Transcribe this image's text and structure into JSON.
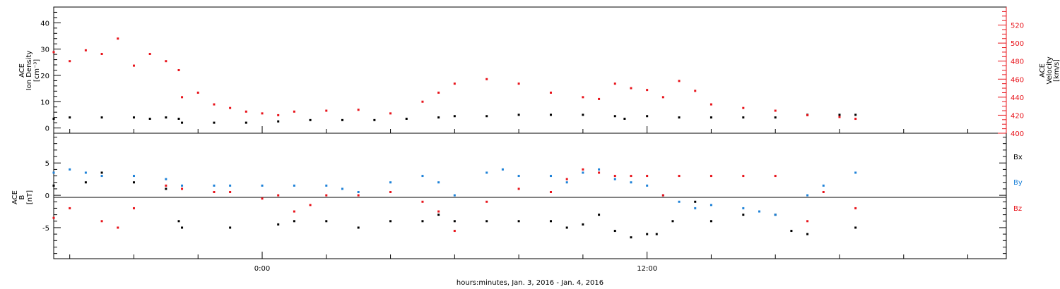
{
  "colors": {
    "black": "#000000",
    "red": "#e8141b",
    "blue": "#1e82d8"
  },
  "xlabel": "hours:minutes, Jan.  3, 2016 - Jan.  4, 2016",
  "chart_data": [
    {
      "type": "scatter",
      "panel": "ion-density-velocity",
      "ylabel_left": [
        "ACE",
        "Ion Density",
        "[cm⁻³]"
      ],
      "ylabel_right": [
        "ACE",
        "Velocity",
        "[km/s]"
      ],
      "ylim_left": [
        -2,
        46
      ],
      "yticks_left": [
        "0",
        "10",
        "20",
        "30",
        "40"
      ],
      "ylim_right": [
        400,
        540
      ],
      "yticks_right": [
        "400",
        "420",
        "440",
        "460",
        "480",
        "500",
        "520"
      ],
      "x_ticks": [
        {
          "hour": 0,
          "label": "0:00"
        },
        {
          "hour": 12,
          "label": "12:00"
        }
      ],
      "xlim_hours": [
        -6.5,
        23.2
      ],
      "series": [
        {
          "name": "Ion Density",
          "color": "#000000",
          "axis": "left",
          "x": [
            -6.5,
            -6.0,
            -5.0,
            -4.0,
            -3.5,
            -3.0,
            -2.6,
            -2.5,
            -1.5,
            -0.5,
            0.5,
            1.5,
            2.5,
            3.5,
            4.5,
            5.5,
            6.0,
            7.0,
            8.0,
            9.0,
            10.0,
            11.0,
            11.3,
            12.0,
            13.0,
            14.0,
            15.0,
            16.0,
            17.0,
            18.0,
            18.5
          ],
          "y": [
            3.5,
            4.0,
            4.0,
            4.0,
            3.5,
            4.0,
            3.5,
            2.0,
            2.0,
            2.0,
            2.5,
            3.0,
            3.0,
            3.0,
            3.5,
            4.0,
            4.5,
            4.5,
            5.0,
            5.0,
            5.0,
            4.5,
            3.5,
            4.5,
            4.0,
            4.0,
            4.0,
            4.0,
            5.0,
            5.0,
            5.0
          ]
        },
        {
          "name": "Velocity",
          "color": "#e8141b",
          "axis": "right",
          "x": [
            -6.5,
            -6.0,
            -5.5,
            -5.0,
            -4.5,
            -4.0,
            -3.5,
            -3.0,
            -2.6,
            -2.5,
            -2.0,
            -1.5,
            -1.0,
            -0.5,
            0.0,
            0.5,
            1.0,
            2.0,
            3.0,
            4.0,
            5.0,
            5.5,
            6.0,
            7.0,
            8.0,
            9.0,
            10.0,
            10.5,
            11.0,
            11.5,
            12.0,
            12.5,
            13.0,
            13.5,
            14.0,
            15.0,
            16.0,
            17.0,
            18.0,
            18.5
          ],
          "y": [
            490,
            480,
            492,
            488,
            505,
            475,
            488,
            480,
            470,
            440,
            445,
            432,
            428,
            424,
            422,
            420,
            424,
            425,
            426,
            422,
            435,
            445,
            455,
            460,
            455,
            445,
            440,
            438,
            455,
            450,
            448,
            440,
            458,
            447,
            432,
            428,
            425,
            420,
            418,
            416
          ]
        }
      ]
    },
    {
      "type": "scatter",
      "panel": "magnetic-field",
      "ylabel": [
        "ACE",
        "B",
        "[nT]"
      ],
      "ylim": [
        -9.8,
        9.6
      ],
      "yticks": [
        "-5",
        "0",
        "5"
      ],
      "zero_line": true,
      "legend": [
        "Bx",
        "By",
        "Bz"
      ],
      "legend_placement": "right",
      "series": [
        {
          "name": "Bx",
          "color": "#000000",
          "x": [
            -6.5,
            -5.5,
            -5.0,
            -4.0,
            -3.0,
            -2.6,
            -2.5,
            -1.0,
            0.5,
            1.0,
            2.0,
            3.0,
            4.0,
            5.0,
            5.5,
            6.0,
            7.0,
            8.0,
            9.0,
            9.5,
            10.0,
            10.5,
            11.0,
            11.5,
            12.0,
            12.3,
            12.8,
            13.5,
            14.0,
            15.0,
            16.0,
            16.5,
            17.0,
            18.5
          ],
          "y": [
            1.5,
            2.0,
            3.5,
            2.0,
            1.0,
            -4.0,
            -5.0,
            -5.0,
            -4.5,
            -4.0,
            -4.0,
            -5.0,
            -4.0,
            -4.0,
            -3.0,
            -4.0,
            -4.0,
            -4.0,
            -4.0,
            -5.0,
            -4.5,
            -3.0,
            -5.5,
            -6.5,
            -6.0,
            -6.0,
            -4.0,
            -1.0,
            -4.0,
            -3.0,
            -3.0,
            -5.5,
            -6.0,
            -5.0
          ]
        },
        {
          "name": "By",
          "color": "#1e82d8",
          "x": [
            -6.5,
            -6.0,
            -5.5,
            -5.0,
            -4.0,
            -3.0,
            -2.5,
            -1.5,
            -1.0,
            0.0,
            1.0,
            2.0,
            2.5,
            3.0,
            4.0,
            5.0,
            5.5,
            6.0,
            7.0,
            7.5,
            8.0,
            9.0,
            9.5,
            10.0,
            10.5,
            11.0,
            11.5,
            12.0,
            12.5,
            13.0,
            13.5,
            14.0,
            15.0,
            15.5,
            16.0,
            17.0,
            17.5,
            18.5
          ],
          "y": [
            3.5,
            4.0,
            3.5,
            3.0,
            3.0,
            2.5,
            1.5,
            1.5,
            1.5,
            1.5,
            1.5,
            1.5,
            1.0,
            0.5,
            2.0,
            3.0,
            2.0,
            0.0,
            3.5,
            4.0,
            3.0,
            3.0,
            2.0,
            3.5,
            4.0,
            2.5,
            2.0,
            1.5,
            0.0,
            -1.0,
            -2.0,
            -1.5,
            -2.0,
            -2.5,
            -3.0,
            0.0,
            1.5,
            3.5
          ]
        },
        {
          "name": "Bz",
          "color": "#e8141b",
          "x": [
            -6.5,
            -6.0,
            -5.0,
            -4.5,
            -4.0,
            -3.0,
            -2.5,
            -1.5,
            -1.0,
            0.0,
            0.5,
            1.0,
            1.5,
            2.0,
            3.0,
            4.0,
            5.0,
            5.5,
            6.0,
            7.0,
            8.0,
            9.0,
            9.5,
            10.0,
            10.5,
            11.0,
            11.5,
            12.0,
            12.5,
            13.0,
            14.0,
            15.0,
            16.0,
            17.0,
            17.5,
            18.5
          ],
          "y": [
            -3.5,
            -2.0,
            -4.0,
            -5.0,
            -2.0,
            1.5,
            1.0,
            0.5,
            0.5,
            -0.5,
            0.0,
            -2.5,
            -1.5,
            0.0,
            0.0,
            0.5,
            -1.0,
            -2.5,
            -5.5,
            -1.0,
            1.0,
            0.5,
            2.5,
            4.0,
            3.5,
            3.0,
            3.0,
            3.0,
            0.0,
            3.0,
            3.0,
            3.0,
            3.0,
            -4.0,
            0.5,
            -2.0
          ]
        }
      ]
    }
  ]
}
